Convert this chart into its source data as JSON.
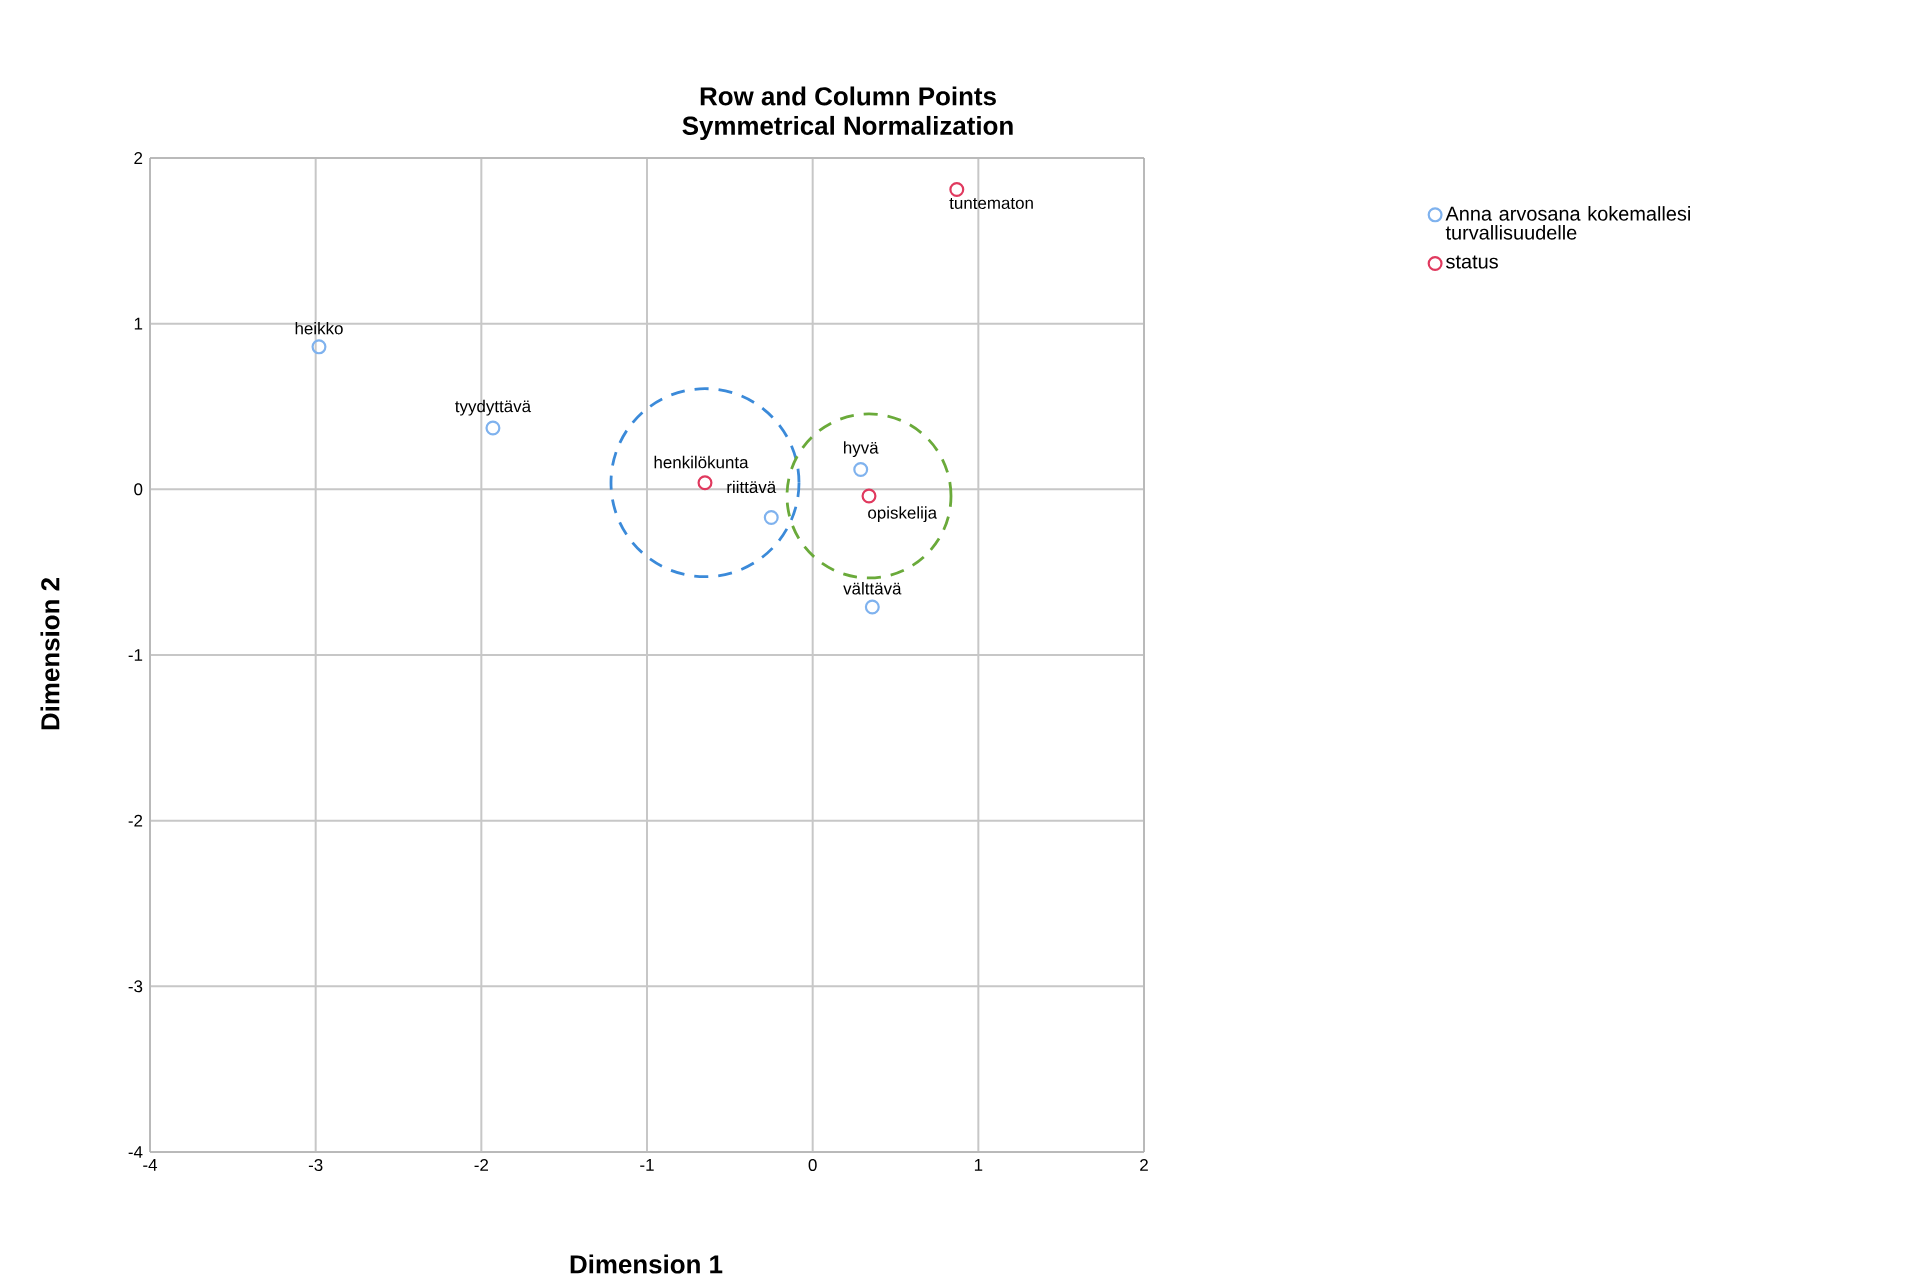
{
  "chart_data": {
    "type": "scatter",
    "title": "Row and Column Points",
    "subtitle": "Symmetrical Normalization",
    "xlabel": "Dimension 1",
    "ylabel": "Dimension 2",
    "xlim": [
      -4,
      2
    ],
    "ylim": [
      -4,
      2
    ],
    "xticks": [
      -4,
      -3,
      -2,
      -1,
      0,
      1,
      2
    ],
    "yticks": [
      -4,
      -3,
      -2,
      -1,
      0,
      1,
      2
    ],
    "grid": true,
    "legend": "top right",
    "marker": "circle",
    "series": [
      {
        "name": "Anna arvosana  kokemallesi turvallisuudelle",
        "color": "#7fb2ee",
        "x": [
          -2.98,
          -1.93,
          -0.25,
          0.29,
          0.36
        ],
        "values": [
          0.86,
          0.37,
          -0.17,
          0.12,
          -0.71
        ]
      },
      {
        "name": "status",
        "color": "#e0395e",
        "x": [
          -0.65,
          0.34,
          0.87
        ],
        "values": [
          0.04,
          -0.04,
          1.81
        ]
      }
    ],
    "annotations": [
      {
        "text": "heikko",
        "x": -2.98,
        "y": 0.86
      },
      {
        "text": "tyydyttävä",
        "x": -1.93,
        "y": 0.37
      },
      {
        "text": "riittävä",
        "x": -0.25,
        "y": -0.17
      },
      {
        "text": "hyvä",
        "x": 0.29,
        "y": 0.12
      },
      {
        "text": "välttävä",
        "x": 0.36,
        "y": -0.71
      },
      {
        "text": "henkilökunta",
        "x": -0.65,
        "y": 0.04
      },
      {
        "text": "opiskelija",
        "x": 0.34,
        "y": -0.04
      },
      {
        "text": "tuntematon",
        "x": 0.87,
        "y": 1.81
      }
    ]
  }
}
